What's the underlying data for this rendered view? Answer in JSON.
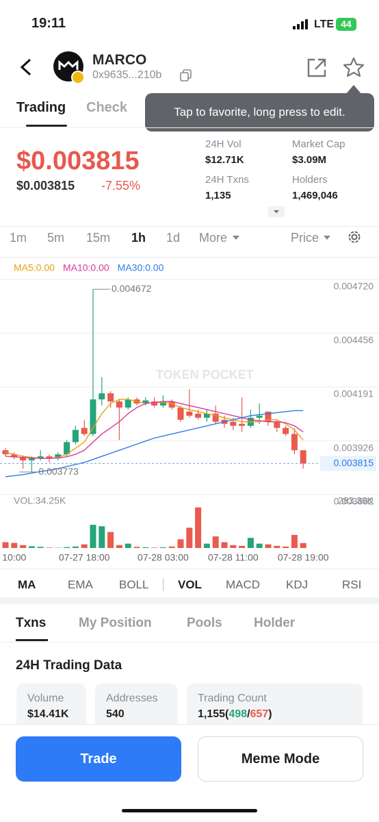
{
  "status": {
    "time": "19:11",
    "network": "LTE",
    "battery": "44"
  },
  "header": {
    "name": "MARCO",
    "address": "0x9635...210b"
  },
  "tabs": [
    "Trading",
    "Check"
  ],
  "tooltip": "Tap to favorite, long press to edit.",
  "price": {
    "main": "$0.003815",
    "sub": "$0.003815",
    "change": "-7.55%"
  },
  "stats": [
    {
      "label": "24H Vol",
      "value": "$12.71K"
    },
    {
      "label": "Market Cap",
      "value": "$3.09M"
    },
    {
      "label": "24H Txns",
      "value": "1,135"
    },
    {
      "label": "Holders",
      "value": "1,469,046"
    }
  ],
  "intervals": [
    "1m",
    "5m",
    "15m",
    "1h",
    "1d",
    "More"
  ],
  "price_toggle": "Price",
  "chart_data": {
    "type": "candlestick",
    "watermark": "TOKEN POCKET",
    "up_color": "#25a57a",
    "down_color": "#ea5a4e",
    "ylim": [
      0.003662,
      0.00472
    ],
    "yticks": [
      {
        "value": 0.00472,
        "label": "0.004720"
      },
      0.004456,
      0.004191,
      0.003926,
      0.003662
    ],
    "grid": true,
    "categories": [
      null,
      "10:00",
      null,
      null,
      null,
      null,
      null,
      null,
      null,
      "07-27 18:00",
      null,
      null,
      null,
      null,
      null,
      null,
      null,
      null,
      "07-28 03:00",
      null,
      null,
      null,
      null,
      null,
      null,
      null,
      "07-28 11:00",
      null,
      null,
      null,
      null,
      null,
      null,
      null,
      "07-28 19:00"
    ],
    "open": [
      0.00388,
      0.00386,
      0.003845,
      0.00383,
      0.00384,
      0.00385,
      0.00384,
      0.00386,
      0.00392,
      0.00399,
      0.00396,
      0.00413,
      0.00416,
      0.00412,
      0.00409,
      0.00413,
      0.00411,
      0.00412,
      0.0041,
      0.00412,
      0.00409,
      0.00407,
      0.00406,
      0.00404,
      0.00406,
      0.00403,
      0.00402,
      0.00401,
      0.004,
      0.00404,
      0.00407,
      0.00402,
      0.00399,
      0.00396,
      0.00388
    ],
    "high": [
      0.00389,
      0.00387,
      0.003855,
      0.00385,
      0.00388,
      0.00386,
      0.00387,
      0.00393,
      0.004,
      0.00403,
      0.004672,
      0.00424,
      0.00417,
      0.00413,
      0.00414,
      0.00414,
      0.00414,
      0.00414,
      0.00415,
      0.00413,
      0.0041,
      0.00418,
      0.00408,
      0.00408,
      0.0041,
      0.00405,
      0.00404,
      0.00414,
      0.00408,
      0.00411,
      0.00407,
      0.00403,
      0.004,
      0.00399,
      0.00388
    ],
    "low": [
      0.00385,
      0.003835,
      0.00379,
      0.003773,
      0.00383,
      0.00382,
      0.00383,
      0.00385,
      0.00391,
      0.00395,
      0.00395,
      0.0041,
      0.00409,
      0.00393,
      0.00408,
      0.0041,
      0.0041,
      0.00409,
      0.00409,
      0.00408,
      0.00402,
      0.00404,
      0.00403,
      0.00402,
      0.00401,
      0.00399,
      0.00398,
      0.00397,
      0.00399,
      0.00401,
      0.004,
      0.00397,
      0.00395,
      0.00386,
      0.00379
    ],
    "close": [
      0.00386,
      0.003845,
      0.00383,
      0.00384,
      0.00385,
      0.00384,
      0.00386,
      0.00392,
      0.00398,
      0.00396,
      0.00413,
      0.00416,
      0.00412,
      0.00409,
      0.00413,
      0.00411,
      0.004125,
      0.0041,
      0.00412,
      0.00409,
      0.00403,
      0.00405,
      0.00404,
      0.00406,
      0.00402,
      0.00401,
      0.004,
      0.004,
      0.00404,
      0.00405,
      0.00402,
      0.00399,
      0.00396,
      0.00388,
      0.003815
    ],
    "series": [
      {
        "name": "MA5:0.00",
        "color": "#e3a30c",
        "values": [
          0.00387,
          0.00386,
          0.00385,
          0.003845,
          0.00384,
          0.00384,
          0.003845,
          0.00386,
          0.00389,
          0.00392,
          0.00399,
          0.00406,
          0.00411,
          0.00413,
          0.00413,
          0.00412,
          0.00411,
          0.004115,
          0.004115,
          0.00411,
          0.00409,
          0.00408,
          0.00407,
          0.00406,
          0.00405,
          0.00404,
          0.00403,
          0.00402,
          0.00402,
          0.00402,
          0.00403,
          0.00403,
          0.00401,
          0.00398,
          0.00393
        ]
      },
      {
        "name": "MA10:0.00",
        "color": "#d63a9c",
        "values": [
          0.00385,
          0.003848,
          0.003845,
          0.003842,
          0.00384,
          0.00384,
          0.003842,
          0.003848,
          0.00386,
          0.00388,
          0.00392,
          0.00396,
          0.00399,
          0.00402,
          0.00406,
          0.00409,
          0.00411,
          0.004115,
          0.00412,
          0.00412,
          0.00411,
          0.0041,
          0.00409,
          0.00408,
          0.00407,
          0.00406,
          0.00405,
          0.00404,
          0.00403,
          0.004025,
          0.00402,
          0.00402,
          0.004015,
          0.004,
          0.00397
        ]
      },
      {
        "name": "MA30:0.00",
        "color": "#2a7be4",
        "values": [
          0.00375,
          0.003755,
          0.00376,
          0.003768,
          0.003775,
          0.003782,
          0.00379,
          0.0038,
          0.00381,
          0.00382,
          0.003835,
          0.00385,
          0.003865,
          0.00388,
          0.003895,
          0.00391,
          0.003925,
          0.00394,
          0.00395,
          0.00396,
          0.00397,
          0.00398,
          0.00399,
          0.004,
          0.00401,
          0.00402,
          0.00403,
          0.00404,
          0.00405,
          0.004055,
          0.00406,
          0.004065,
          0.00407,
          0.004075,
          0.004075
        ]
      }
    ],
    "high_marker": 0.004672,
    "low_marker": 0.003773,
    "current_price": 0.003815,
    "volume_label": "VOL:34.25K",
    "volume": [
      40000,
      35000,
      20000,
      12000,
      8000,
      3000,
      2000,
      6000,
      10000,
      25000,
      160000,
      150000,
      110000,
      20000,
      30000,
      8000,
      5000,
      3000,
      5000,
      10000,
      60000,
      140000,
      280000,
      30000,
      80000,
      40000,
      20000,
      15000,
      70000,
      30000,
      25000,
      15000,
      10000,
      90000,
      34250
    ],
    "vol_ylim": [
      0,
      283390
    ],
    "vol_yticks": [
      {
        "value": 283390,
        "label": "283.39K"
      }
    ]
  },
  "indicators": [
    "MA",
    "EMA",
    "BOLL",
    "VOL",
    "MACD",
    "KDJ",
    "RSI"
  ],
  "bottom_tabs": [
    "Txns",
    "My Position",
    "Pools",
    "Holder"
  ],
  "section_title": "24H Trading Data",
  "cards": [
    {
      "label": "Volume",
      "value": "$14.41K"
    },
    {
      "label": "Addresses",
      "value": "540"
    },
    {
      "label": "Trading Count",
      "value": "1,155",
      "punct": [
        "(",
        "/",
        ")"
      ],
      "buys": "498",
      "sells": "657"
    }
  ],
  "buttons": [
    "Trade",
    "Meme Mode"
  ]
}
